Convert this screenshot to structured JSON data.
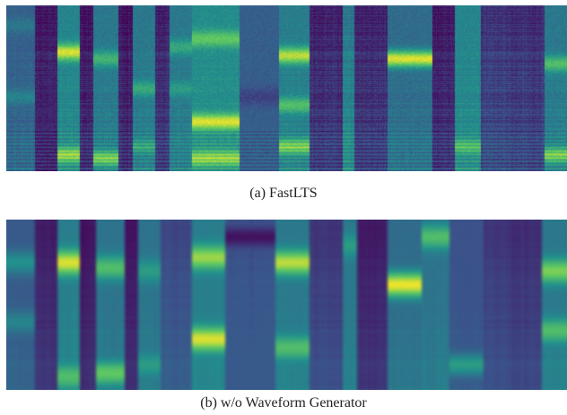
{
  "chart_data": [
    {
      "type": "heatmap",
      "caption": "(a) FastLTS",
      "colormap": [
        "#440154",
        "#3b528b",
        "#21918c",
        "#5ec962",
        "#fde725"
      ],
      "sharpness": "sharp",
      "columns": [
        {
          "x0": 0.0,
          "x1": 0.05,
          "base": 0.3,
          "hot": [
            [
              0.12,
              0.4
            ],
            [
              0.55,
              0.45
            ]
          ],
          "cold": []
        },
        {
          "x0": 0.05,
          "x1": 0.09,
          "base": 0.12,
          "hot": [],
          "cold": [
            [
              0.3,
              0.2
            ]
          ]
        },
        {
          "x0": 0.09,
          "x1": 0.13,
          "base": 0.45,
          "hot": [
            [
              0.28,
              0.95
            ],
            [
              0.9,
              0.85
            ]
          ],
          "cold": []
        },
        {
          "x0": 0.13,
          "x1": 0.155,
          "base": 0.1,
          "hot": [],
          "cold": []
        },
        {
          "x0": 0.155,
          "x1": 0.2,
          "base": 0.4,
          "hot": [
            [
              0.32,
              0.65
            ],
            [
              0.92,
              0.8
            ]
          ],
          "cold": []
        },
        {
          "x0": 0.2,
          "x1": 0.225,
          "base": 0.1,
          "hot": [],
          "cold": []
        },
        {
          "x0": 0.225,
          "x1": 0.265,
          "base": 0.4,
          "hot": [
            [
              0.5,
              0.6
            ],
            [
              0.85,
              0.6
            ]
          ],
          "cold": []
        },
        {
          "x0": 0.265,
          "x1": 0.29,
          "base": 0.15,
          "hot": [],
          "cold": []
        },
        {
          "x0": 0.29,
          "x1": 0.33,
          "base": 0.4,
          "hot": [
            [
              0.25,
              0.6
            ],
            [
              0.5,
              0.55
            ]
          ],
          "cold": []
        },
        {
          "x0": 0.33,
          "x1": 0.415,
          "base": 0.48,
          "hot": [
            [
              0.2,
              0.75
            ],
            [
              0.7,
              0.95
            ],
            [
              0.92,
              0.85
            ]
          ],
          "cold": []
        },
        {
          "x0": 0.415,
          "x1": 0.485,
          "base": 0.3,
          "hot": [
            [
              0.92,
              0.75
            ]
          ],
          "cold": [
            [
              0.55,
              0.2
            ]
          ]
        },
        {
          "x0": 0.485,
          "x1": 0.54,
          "base": 0.42,
          "hot": [
            [
              0.3,
              0.9
            ],
            [
              0.6,
              0.7
            ],
            [
              0.85,
              0.8
            ]
          ],
          "cold": []
        },
        {
          "x0": 0.54,
          "x1": 0.6,
          "base": 0.15,
          "hot": [],
          "cold": []
        },
        {
          "x0": 0.6,
          "x1": 0.62,
          "base": 0.45,
          "hot": [],
          "cold": []
        },
        {
          "x0": 0.62,
          "x1": 0.68,
          "base": 0.15,
          "hot": [],
          "cold": []
        },
        {
          "x0": 0.68,
          "x1": 0.76,
          "base": 0.35,
          "hot": [
            [
              0.32,
              0.95
            ]
          ],
          "cold": []
        },
        {
          "x0": 0.76,
          "x1": 0.8,
          "base": 0.12,
          "hot": [],
          "cold": []
        },
        {
          "x0": 0.8,
          "x1": 0.845,
          "base": 0.45,
          "hot": [
            [
              0.85,
              0.7
            ]
          ],
          "cold": []
        },
        {
          "x0": 0.845,
          "x1": 0.9,
          "base": 0.2,
          "hot": [],
          "cold": []
        },
        {
          "x0": 0.9,
          "x1": 0.96,
          "base": 0.18,
          "hot": [],
          "cold": []
        },
        {
          "x0": 0.96,
          "x1": 1.0,
          "base": 0.4,
          "hot": [
            [
              0.35,
              0.7
            ],
            [
              0.9,
              0.8
            ]
          ],
          "cold": []
        }
      ]
    },
    {
      "type": "heatmap",
      "caption": "(b) w/o Waveform Generator",
      "colormap": [
        "#440154",
        "#3b528b",
        "#21918c",
        "#5ec962",
        "#fde725"
      ],
      "sharpness": "smooth",
      "columns": [
        {
          "x0": 0.0,
          "x1": 0.05,
          "base": 0.28,
          "hot": [
            [
              0.25,
              0.5
            ],
            [
              0.6,
              0.45
            ]
          ],
          "cold": []
        },
        {
          "x0": 0.05,
          "x1": 0.09,
          "base": 0.12,
          "hot": [],
          "cold": []
        },
        {
          "x0": 0.09,
          "x1": 0.13,
          "base": 0.42,
          "hot": [
            [
              0.25,
              0.95
            ],
            [
              0.92,
              0.7
            ]
          ],
          "cold": []
        },
        {
          "x0": 0.13,
          "x1": 0.16,
          "base": 0.1,
          "hot": [],
          "cold": []
        },
        {
          "x0": 0.16,
          "x1": 0.21,
          "base": 0.38,
          "hot": [
            [
              0.28,
              0.7
            ],
            [
              0.9,
              0.75
            ]
          ],
          "cold": []
        },
        {
          "x0": 0.21,
          "x1": 0.235,
          "base": 0.1,
          "hot": [],
          "cold": []
        },
        {
          "x0": 0.235,
          "x1": 0.275,
          "base": 0.38,
          "hot": [
            [
              0.3,
              0.55
            ],
            [
              0.85,
              0.55
            ]
          ],
          "cold": []
        },
        {
          "x0": 0.275,
          "x1": 0.33,
          "base": 0.25,
          "hot": [],
          "cold": []
        },
        {
          "x0": 0.33,
          "x1": 0.39,
          "base": 0.42,
          "hot": [
            [
              0.22,
              0.85
            ],
            [
              0.7,
              0.95
            ]
          ],
          "cold": []
        },
        {
          "x0": 0.39,
          "x1": 0.48,
          "base": 0.28,
          "hot": [],
          "cold": [
            [
              0.1,
              0.05
            ]
          ]
        },
        {
          "x0": 0.48,
          "x1": 0.54,
          "base": 0.4,
          "hot": [
            [
              0.25,
              0.9
            ],
            [
              0.75,
              0.7
            ]
          ],
          "cold": []
        },
        {
          "x0": 0.54,
          "x1": 0.6,
          "base": 0.2,
          "hot": [],
          "cold": []
        },
        {
          "x0": 0.6,
          "x1": 0.625,
          "base": 0.4,
          "hot": [
            [
              0.15,
              0.55
            ]
          ],
          "cold": []
        },
        {
          "x0": 0.625,
          "x1": 0.68,
          "base": 0.12,
          "hot": [],
          "cold": []
        },
        {
          "x0": 0.68,
          "x1": 0.74,
          "base": 0.35,
          "hot": [
            [
              0.38,
              0.98
            ]
          ],
          "cold": []
        },
        {
          "x0": 0.74,
          "x1": 0.79,
          "base": 0.38,
          "hot": [
            [
              0.1,
              0.7
            ]
          ],
          "cold": []
        },
        {
          "x0": 0.79,
          "x1": 0.85,
          "base": 0.25,
          "hot": [
            [
              0.85,
              0.55
            ]
          ],
          "cold": []
        },
        {
          "x0": 0.85,
          "x1": 0.9,
          "base": 0.2,
          "hot": [],
          "cold": []
        },
        {
          "x0": 0.9,
          "x1": 0.955,
          "base": 0.18,
          "hot": [],
          "cold": []
        },
        {
          "x0": 0.955,
          "x1": 1.0,
          "base": 0.4,
          "hot": [
            [
              0.3,
              0.8
            ],
            [
              0.65,
              0.7
            ]
          ],
          "cold": []
        }
      ]
    }
  ]
}
